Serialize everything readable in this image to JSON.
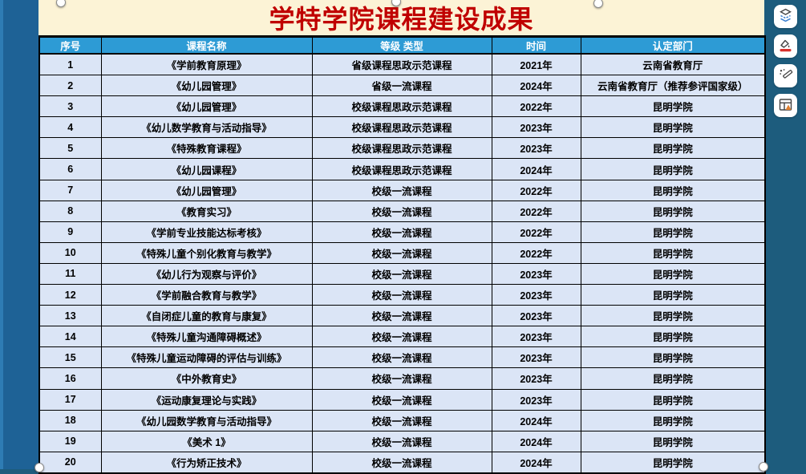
{
  "slide": {
    "title": "学特学院课程建设成果",
    "title_color": "#c00000",
    "background": "#fcf3d6"
  },
  "table": {
    "header_bg": "#2d9bd5",
    "row_bg": "#dbe5f6",
    "headers": [
      "序号",
      "课程名称",
      "等级 类型",
      "时间",
      "认定部门"
    ],
    "rows": [
      [
        "1",
        "《学前教育原理》",
        "省级课程思政示范课程",
        "2021年",
        "云南省教育厅"
      ],
      [
        "2",
        "《幼儿园管理》",
        "省级一流课程",
        "2024年",
        "云南省教育厅（推荐参评国家级）"
      ],
      [
        "3",
        "《幼儿园管理》",
        "校级课程思政示范课程",
        "2022年",
        "昆明学院"
      ],
      [
        "4",
        "《幼儿数学教育与活动指导》",
        "校级课程思政示范课程",
        "2023年",
        "昆明学院"
      ],
      [
        "5",
        "《特殊教育课程》",
        "校级课程思政示范课程",
        "2023年",
        "昆明学院"
      ],
      [
        "6",
        "《幼儿园课程》",
        "校级课程思政示范课程",
        "2024年",
        "昆明学院"
      ],
      [
        "7",
        "《幼儿园管理》",
        "校级一流课程",
        "2022年",
        "昆明学院"
      ],
      [
        "8",
        "《教育实习》",
        "校级一流课程",
        "2022年",
        "昆明学院"
      ],
      [
        "9",
        "《学前专业技能达标考核》",
        "校级一流课程",
        "2022年",
        "昆明学院"
      ],
      [
        "10",
        "《特殊儿童个别化教育与教学》",
        "校级一流课程",
        "2022年",
        "昆明学院"
      ],
      [
        "11",
        "《幼儿行为观察与评价》",
        "校级一流课程",
        "2023年",
        "昆明学院"
      ],
      [
        "12",
        "《学前融合教育与教学》",
        "校级一流课程",
        "2023年",
        "昆明学院"
      ],
      [
        "13",
        "《自闭症儿童的教育与康复》",
        "校级一流课程",
        "2023年",
        "昆明学院"
      ],
      [
        "14",
        "《特殊儿童沟通障碍概述》",
        "校级一流课程",
        "2023年",
        "昆明学院"
      ],
      [
        "15",
        "《特殊儿童运动障碍的评估与训练》",
        "校级一流课程",
        "2023年",
        "昆明学院"
      ],
      [
        "16",
        "《中外教育史》",
        "校级一流课程",
        "2023年",
        "昆明学院"
      ],
      [
        "17",
        "《运动康复理论与实践》",
        "校级一流课程",
        "2023年",
        "昆明学院"
      ],
      [
        "18",
        "《幼儿园数学教育与活动指导》",
        "校级一流课程",
        "2024年",
        "昆明学院"
      ],
      [
        "19",
        "《美术 1》",
        "校级一流课程",
        "2024年",
        "昆明学院"
      ],
      [
        "20",
        "《行为矫正技术》",
        "校级一流课程",
        "2024年",
        "昆明学院"
      ]
    ]
  },
  "toolbar": {
    "icons": [
      "layers-icon",
      "fill-color-icon",
      "beautify-icon",
      "table-style-icon"
    ],
    "fill_accent": "#d9302c",
    "table_accent": "#e07f2e",
    "layers_accent": "#3b7fd0"
  }
}
